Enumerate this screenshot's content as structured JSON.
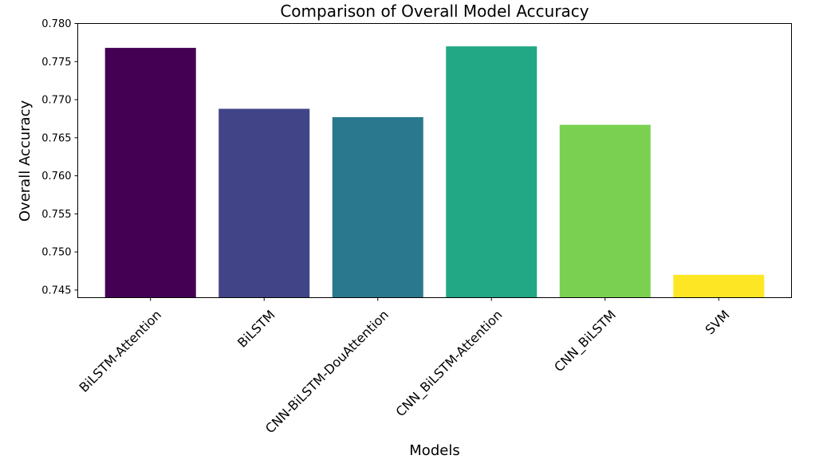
{
  "chart_data": {
    "type": "bar",
    "title": "Comparison of Overall Model Accuracy",
    "xlabel": "Models",
    "ylabel": "Overall Accuracy",
    "categories": [
      "BiLSTM-Attention",
      "BiLSTM",
      "CNN-BiLSTM-DouAttention",
      "CNN_BiLSTM-Attention",
      "CNN_BiLSTM",
      "SVM"
    ],
    "values": [
      0.7768,
      0.7688,
      0.7677,
      0.777,
      0.7667,
      0.747
    ],
    "colors": [
      "#440154",
      "#414487",
      "#2a788e",
      "#22a884",
      "#7ad151",
      "#fde725"
    ],
    "ylim": [
      0.744,
      0.78
    ],
    "yticks": [
      0.745,
      0.75,
      0.755,
      0.76,
      0.765,
      0.77,
      0.775,
      0.78
    ],
    "ytick_labels": [
      "0.745",
      "0.750",
      "0.755",
      "0.760",
      "0.765",
      "0.770",
      "0.775",
      "0.780"
    ],
    "grid": false,
    "legend": "none"
  }
}
